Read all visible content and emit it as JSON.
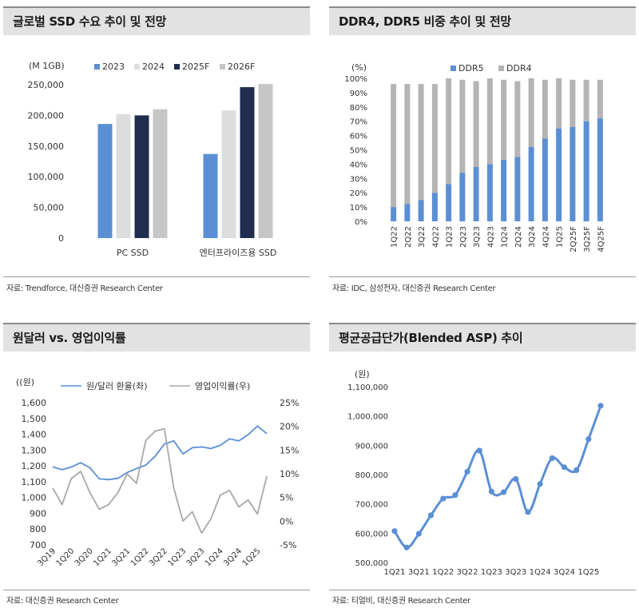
{
  "panels": {
    "ssd": {
      "title": "글로벌 SSD 수요 추이 및 전망",
      "source": "자료: Trendforce, 대신증권 Research Center"
    },
    "ddr": {
      "title": "DDR4, DDR5 비중 추이 및 전망",
      "source": "자료: IDC, 삼성전자, 대신증권 Research Center"
    },
    "fx": {
      "title": "원달러 vs. 영업이익률",
      "source": "자료: 대신증권 Research Center"
    },
    "asp": {
      "title": "평균공급단가(Blended ASP) 추이",
      "source": "자료: 티얼비, 대신증권 Research Center"
    }
  },
  "chart_data": [
    {
      "id": "ssd",
      "type": "bar",
      "unit_label": "(M 1GB)",
      "categories": [
        "PC SSD",
        "엔터프라이즈용 SSD"
      ],
      "series": [
        {
          "name": "2023",
          "color": "#5b8fd4",
          "values": [
            186000,
            137000
          ]
        },
        {
          "name": "2024",
          "color": "#dddddd",
          "values": [
            202000,
            208000
          ]
        },
        {
          "name": "2025F",
          "color": "#1f2d4e",
          "values": [
            200000,
            246000
          ]
        },
        {
          "name": "2026F",
          "color": "#c6c6c6",
          "values": [
            210000,
            251000
          ]
        }
      ],
      "ylim": [
        0,
        250000
      ],
      "yticks": [
        "0",
        "50,000",
        "100,000",
        "150,000",
        "200,000",
        "250,000"
      ],
      "legend": "top"
    },
    {
      "id": "ddr",
      "type": "bar",
      "stacked": true,
      "unit_label": "(%)",
      "categories": [
        "1Q22",
        "2Q22",
        "3Q22",
        "4Q22",
        "1Q23",
        "2Q23",
        "3Q23",
        "4Q23",
        "1Q24",
        "2Q24",
        "3Q24",
        "4Q24",
        "1Q25",
        "2Q25F",
        "3Q25F",
        "4Q25F"
      ],
      "series": [
        {
          "name": "DDR5",
          "color": "#5b8fd4",
          "values": [
            10,
            12,
            15,
            20,
            26,
            34,
            38,
            40,
            43,
            45,
            52,
            58,
            65,
            66,
            70,
            72
          ]
        },
        {
          "name": "DDR4",
          "color": "#b4b4b4",
          "values": [
            86,
            84,
            81,
            76,
            74,
            65,
            60,
            60,
            56,
            53,
            48,
            41,
            35,
            33,
            29,
            27
          ]
        }
      ],
      "ylim": [
        0,
        100
      ],
      "yticks": [
        "0%",
        "10%",
        "20%",
        "30%",
        "40%",
        "50%",
        "60%",
        "70%",
        "80%",
        "90%",
        "100%"
      ],
      "legend": "top"
    },
    {
      "id": "fx",
      "type": "line",
      "unit_label": "((원)",
      "x": [
        "3Q19",
        "4Q19",
        "1Q20",
        "2Q20",
        "3Q20",
        "4Q20",
        "1Q21",
        "2Q21",
        "3Q21",
        "4Q21",
        "1Q22",
        "2Q22",
        "3Q22",
        "4Q22",
        "1Q23",
        "2Q23",
        "3Q23",
        "4Q23",
        "1Q24",
        "2Q24",
        "3Q24",
        "4Q24",
        "1Q25",
        "2Q25"
      ],
      "xticks": [
        "3Q19",
        "1Q20",
        "3Q20",
        "1Q21",
        "3Q21",
        "1Q22",
        "3Q22",
        "1Q23",
        "3Q23",
        "1Q24",
        "3Q24",
        "1Q25"
      ],
      "series": [
        {
          "name": "원/달러 환율(좌)",
          "color": "#5b8fd4",
          "axis": "left",
          "values": [
            1194,
            1176,
            1193,
            1220,
            1188,
            1118,
            1113,
            1121,
            1158,
            1183,
            1205,
            1260,
            1338,
            1359,
            1276,
            1315,
            1320,
            1310,
            1330,
            1371,
            1358,
            1398,
            1452,
            1404
          ]
        },
        {
          "name": "영업이익률(우)",
          "color": "#a8a8a8",
          "axis": "right",
          "values": [
            7.0,
            3.5,
            9.0,
            10.5,
            6.0,
            2.5,
            3.5,
            6.0,
            10.0,
            8.0,
            17.0,
            19.0,
            19.5,
            7.0,
            0.0,
            2.0,
            -2.5,
            0.5,
            5.5,
            6.5,
            3.0,
            4.5,
            1.5,
            9.5
          ]
        }
      ],
      "ylim_left": [
        700,
        1600
      ],
      "ylim_right": [
        -5,
        25
      ],
      "yticks_left": [
        "700",
        "800",
        "900",
        "1,000",
        "1,100",
        "1,200",
        "1,300",
        "1,400",
        "1,500",
        "1,600"
      ],
      "yticks_right": [
        "-5%",
        "0%",
        "5%",
        "10%",
        "15%",
        "20%",
        "25%"
      ],
      "legend": "top"
    },
    {
      "id": "asp",
      "type": "line",
      "unit_label": "(원)",
      "x": [
        "1Q21",
        "2Q21",
        "3Q21",
        "4Q21",
        "1Q22",
        "2Q22",
        "3Q22",
        "4Q22",
        "1Q23",
        "2Q23",
        "3Q23",
        "4Q23",
        "1Q24",
        "2Q24",
        "3Q24",
        "4Q24",
        "1Q25",
        "2Q25"
      ],
      "xticks": [
        "1Q21",
        "3Q21",
        "1Q22",
        "3Q22",
        "1Q23",
        "3Q23",
        "1Q24",
        "3Q24",
        "1Q25"
      ],
      "series": [
        {
          "name": "ASP",
          "color": "#5b8fd4",
          "values": [
            607000,
            551000,
            598000,
            661000,
            718000,
            730000,
            810000,
            882000,
            742000,
            740000,
            785000,
            672000,
            768000,
            856000,
            825000,
            815000,
            921000,
            1035000
          ]
        }
      ],
      "ylim": [
        500000,
        1100000
      ],
      "yticks": [
        "500,000",
        "600,000",
        "700,000",
        "800,000",
        "900,000",
        "1,000,000",
        "1,100,000"
      ]
    }
  ]
}
